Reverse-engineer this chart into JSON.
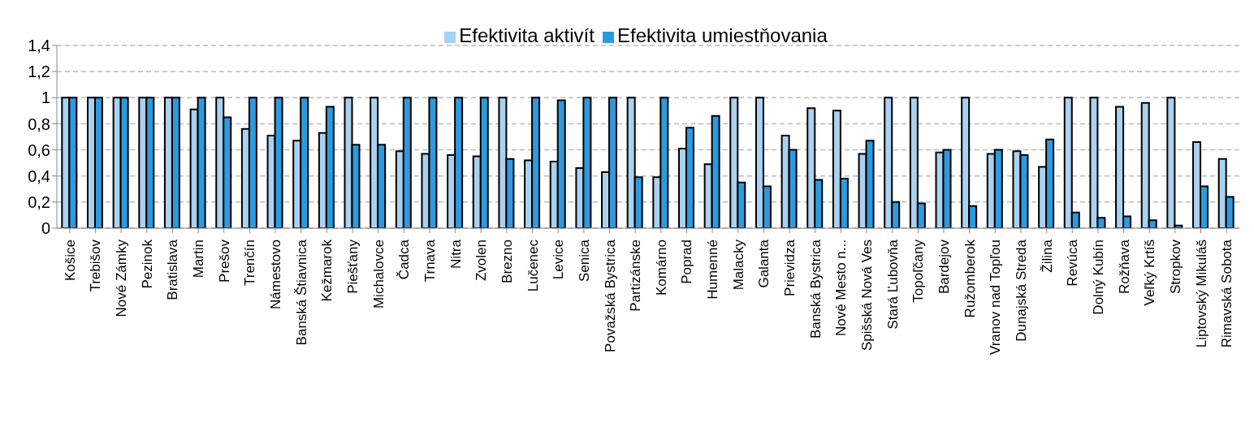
{
  "chart_data": {
    "type": "bar",
    "categories": [
      "Košice",
      "Trebišov",
      "Nové Zámky",
      "Pezinok",
      "Bratislava",
      "Martin",
      "Prešov",
      "Trenčín",
      "Námestovo",
      "Banská Štiavnica",
      "Kežmarok",
      "Piešťany",
      "Michalovce",
      "Čadca",
      "Trnava",
      "Nitra",
      "Zvolen",
      "Brezno",
      "Lučenec",
      "Levice",
      "Senica",
      "Považská Bystrica",
      "Partizánske",
      "Komárno",
      "Poprad",
      "Humenné",
      "Malacky",
      "Galanta",
      "Prievidza",
      "Banská Bystrica",
      "Nové Mesto n...",
      "Spišská Nová Ves",
      "Stará Ľubovňa",
      "Topoľčany",
      "Bardejov",
      "Ružomberok",
      "Vranov nad Topľou",
      "Dunajská Streda",
      "Žilina",
      "Revúca",
      "Dolný Kubín",
      "Rožňava",
      "Veľký Krtíš",
      "Stropkov",
      "Liptovský Mikuláš",
      "Rimavská Sobota"
    ],
    "series": [
      {
        "name": "Efektivita aktivít",
        "color": "#abd1f0",
        "values": [
          1,
          1,
          1,
          1,
          1,
          0.91,
          1,
          0.76,
          0.71,
          0.67,
          0.73,
          1,
          1,
          0.59,
          0.57,
          0.56,
          0.55,
          1,
          0.52,
          0.51,
          0.46,
          0.43,
          1,
          0.39,
          0.61,
          0.49,
          1,
          1,
          0.71,
          0.92,
          0.9,
          0.57,
          1,
          1,
          0.58,
          1,
          0.57,
          0.59,
          0.47,
          1,
          1,
          0.93,
          0.96,
          1,
          0.66,
          0.53
        ]
      },
      {
        "name": "Efektivita umiestňovania",
        "color": "#2e9ade",
        "values": [
          1,
          1,
          1,
          1,
          1,
          1,
          0.85,
          1,
          1,
          1,
          0.93,
          0.64,
          0.64,
          1,
          1,
          1,
          1,
          0.53,
          1,
          0.98,
          1,
          1,
          0.39,
          1,
          0.77,
          0.86,
          0.35,
          0.32,
          0.6,
          0.37,
          0.38,
          0.67,
          0.2,
          0.19,
          0.6,
          0.17,
          0.6,
          0.56,
          0.68,
          0.12,
          0.08,
          0.09,
          0.06,
          0.02,
          0.32,
          0.24
        ]
      }
    ],
    "ylim": [
      0,
      1.4
    ],
    "yticks": [
      {
        "value": 0,
        "label": "0"
      },
      {
        "value": 0.2,
        "label": "0,2"
      },
      {
        "value": 0.4,
        "label": "0,4"
      },
      {
        "value": 0.6,
        "label": "0,6"
      },
      {
        "value": 0.8,
        "label": "0,8"
      },
      {
        "value": 1,
        "label": "1"
      },
      {
        "value": 1.2,
        "label": "1,2"
      },
      {
        "value": 1.4,
        "label": "1,4"
      }
    ],
    "grid": "y",
    "legend": "top"
  }
}
